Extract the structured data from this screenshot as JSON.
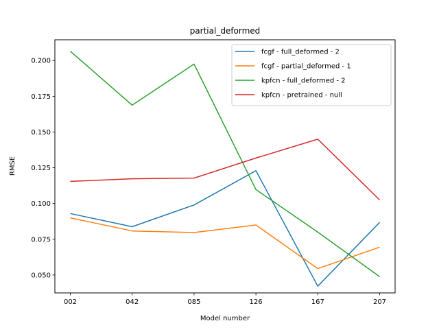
{
  "chart_data": {
    "type": "line",
    "title": "partial_deformed",
    "xlabel": "Model number",
    "ylabel": "RMSE",
    "categories": [
      "002",
      "042",
      "085",
      "126",
      "167",
      "207"
    ],
    "yticks": [
      "0.050",
      "0.075",
      "0.100",
      "0.125",
      "0.150",
      "0.175",
      "0.200"
    ],
    "ylim": [
      0.0375,
      0.2145
    ],
    "grid": false,
    "legend_position": "top-right",
    "series": [
      {
        "name": "fcgf - full_deformed - 2",
        "color": "#1f77b4",
        "values": [
          0.093,
          0.0838,
          0.099,
          0.123,
          0.0422,
          0.0868
        ]
      },
      {
        "name": "fcgf - partial_deformed - 1",
        "color": "#ff7f0e",
        "values": [
          0.09,
          0.0808,
          0.0797,
          0.085,
          0.0545,
          0.0695
        ]
      },
      {
        "name": "kpfcn - full_deformed - 2",
        "color": "#2ca02c",
        "values": [
          0.2065,
          0.1688,
          0.1975,
          0.1098,
          0.08,
          0.0488
        ]
      },
      {
        "name": "kpfcn - pretrained - null",
        "color": "#d62728",
        "values": [
          0.1155,
          0.1173,
          0.1178,
          0.1318,
          0.145,
          0.1025
        ]
      }
    ]
  }
}
